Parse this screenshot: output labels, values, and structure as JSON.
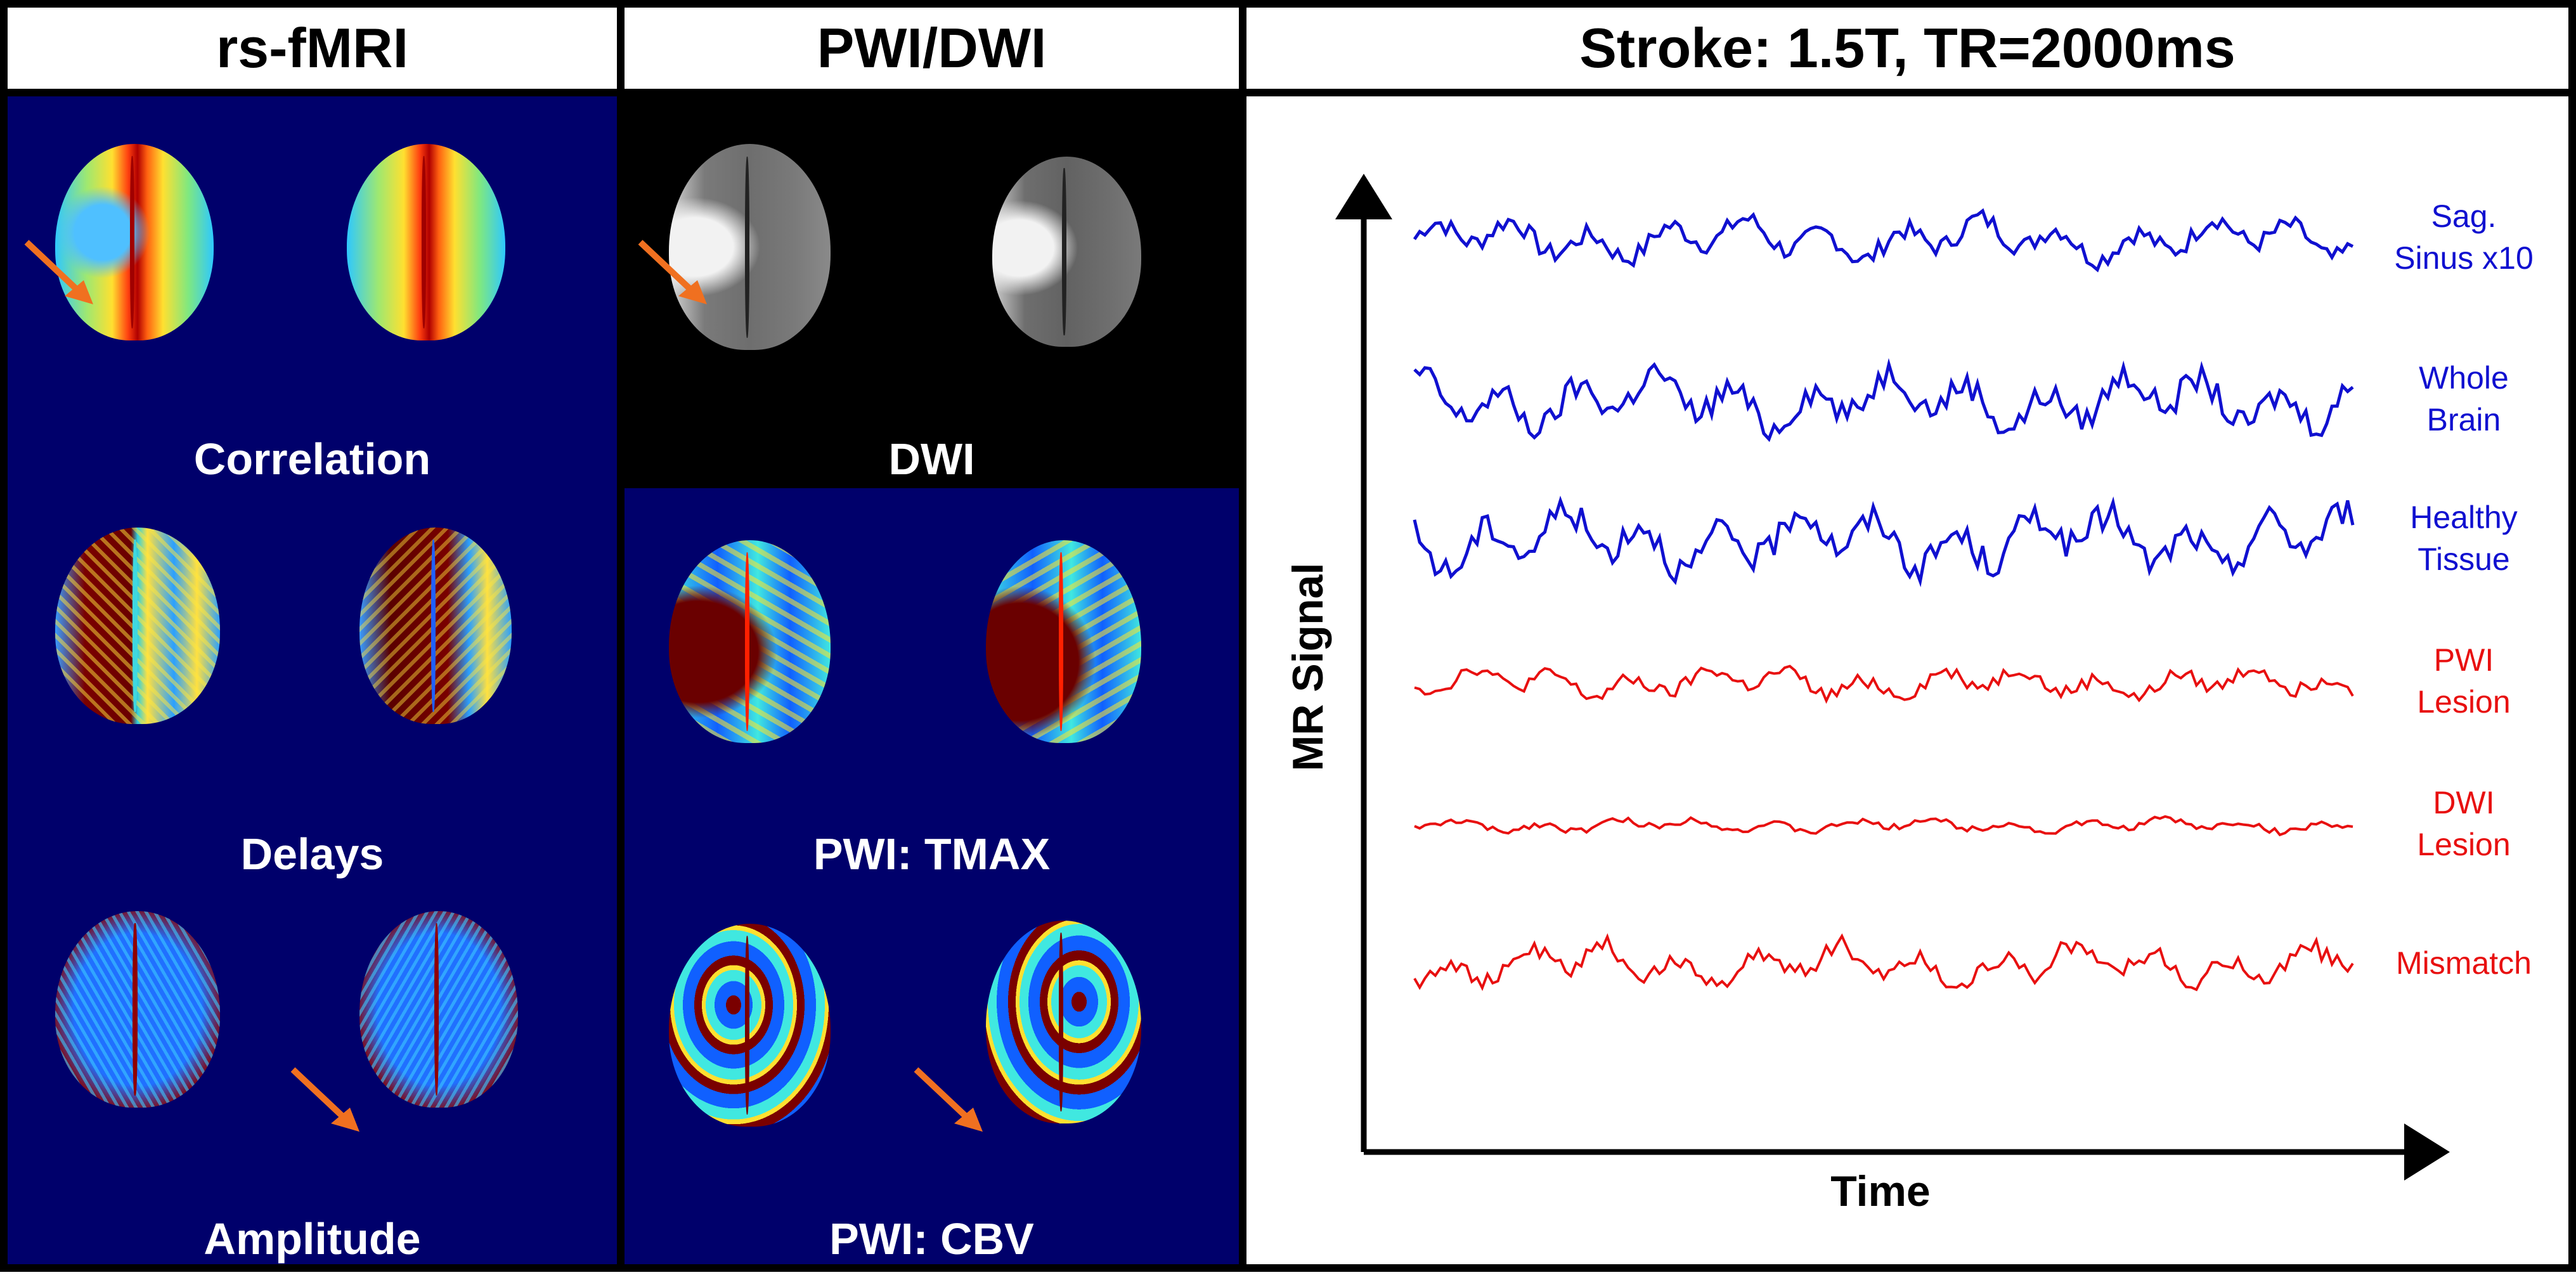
{
  "panels": {
    "rsfmri": {
      "title": "rs-fMRI",
      "captions": [
        "Correlation",
        "Delays",
        "Amplitude"
      ]
    },
    "pwidwi": {
      "title": "PWI/DWI",
      "captions": [
        "DWI",
        "PWI: TMAX",
        "PWI: CBV"
      ]
    },
    "stroke": {
      "title": "Stroke: 1.5T, TR=2000ms"
    }
  },
  "chart_data": {
    "type": "line",
    "xlabel": "Time",
    "ylabel": "MR Signal",
    "series": [
      {
        "name": "Sag.\nSinus x10",
        "color": "#1010d0"
      },
      {
        "name": "Whole\nBrain",
        "color": "#1010d0"
      },
      {
        "name": "Healthy\nTissue",
        "color": "#1010d0"
      },
      {
        "name": "PWI\nLesion",
        "color": "#e81010"
      },
      {
        "name": "DWI\nLesion",
        "color": "#e81010"
      },
      {
        "name": "Mismatch",
        "color": "#e81010"
      }
    ]
  },
  "colors": {
    "panel_bg": "#00006b",
    "arrow": "#f07020",
    "healthy_series": "#1010d0",
    "lesion_series": "#e81010"
  }
}
